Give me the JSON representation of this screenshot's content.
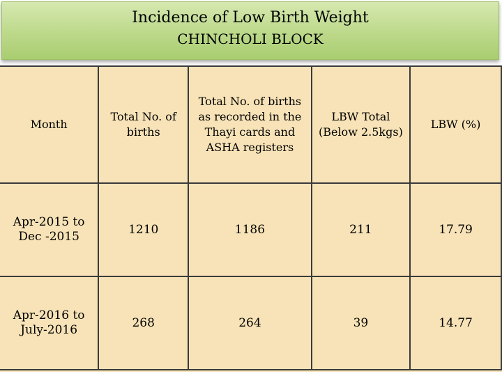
{
  "title": {
    "line1": "Incidence of Low Birth Weight",
    "line2": "CHINCHOLI BLOCK"
  },
  "table": {
    "headers": [
      "Month",
      "Total No. of births",
      "Total No. of births as recorded in the Thayi cards and ASHA registers",
      "LBW Total (Below 2.5kgs)",
      "LBW (%)"
    ],
    "rows": [
      [
        "Apr-2015 to Dec -2015",
        "1210",
        "1186",
        "211",
        "17.79"
      ],
      [
        "Apr-2016 to July-2016",
        "268",
        "264",
        "39",
        "14.77"
      ]
    ]
  }
}
